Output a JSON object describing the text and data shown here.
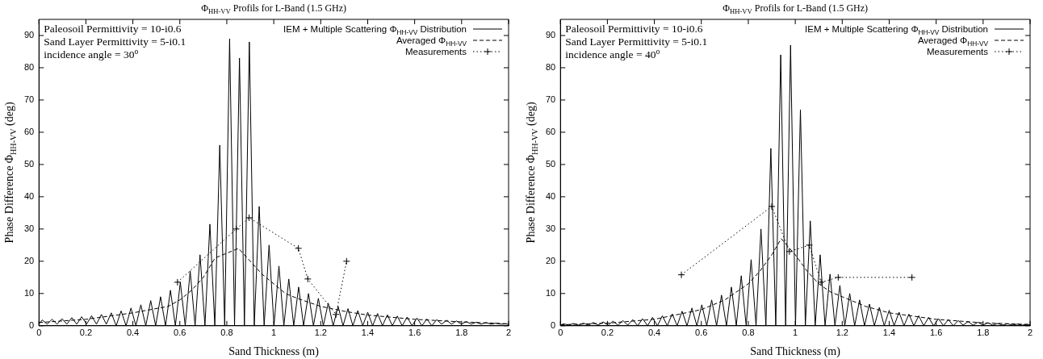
{
  "chart_data": [
    {
      "type": "line",
      "title": "Φ$_{HH-VV}$ Profils for L-Band (1.5 GHz)",
      "xlabel": "Sand Thickness (m)",
      "ylabel": "Phase Difference Φ$_{HH-VV}$ (deg)",
      "annotations": [
        "Paleosoil Permittivity = 10-i0.6",
        "Sand Layer Permittivity = 5-i0.1",
        "incidence angle = 30$^{o}$"
      ],
      "xlim": [
        0,
        2
      ],
      "xticks": [
        0,
        0.2,
        0.4,
        0.6,
        0.8,
        1,
        1.2,
        1.4,
        1.6,
        1.8,
        2
      ],
      "ylim": [
        0,
        95
      ],
      "yticks": [
        0,
        10,
        20,
        30,
        40,
        50,
        60,
        70,
        80,
        90
      ],
      "grid": false,
      "legend": "top right",
      "series": [
        {
          "name": "IEM + Multiple Scattering Φ$_{HH-VV}$ Distribution",
          "color": "#000000",
          "line_style": "solid",
          "marker": "none",
          "x": [
            0,
            0.014,
            0.035,
            0.056,
            0.077,
            0.098,
            0.119,
            0.14,
            0.161,
            0.182,
            0.203,
            0.224,
            0.245,
            0.266,
            0.287,
            0.308,
            0.329,
            0.35,
            0.371,
            0.392,
            0.413,
            0.434,
            0.455,
            0.476,
            0.497,
            0.518,
            0.539,
            0.56,
            0.581,
            0.602,
            0.623,
            0.644,
            0.665,
            0.686,
            0.707,
            0.728,
            0.749,
            0.77,
            0.791,
            0.812,
            0.833,
            0.854,
            0.875,
            0.896,
            0.917,
            0.938,
            0.959,
            0.98,
            1.001,
            1.022,
            1.043,
            1.064,
            1.085,
            1.106,
            1.127,
            1.148,
            1.169,
            1.19,
            1.211,
            1.232,
            1.253,
            1.274,
            1.295,
            1.316,
            1.337,
            1.358,
            1.379,
            1.4,
            1.421,
            1.442,
            1.463,
            1.484,
            1.505,
            1.526,
            1.547,
            1.568,
            1.589,
            1.61,
            1.631,
            1.652,
            1.673,
            1.694,
            1.715,
            1.736,
            1.757,
            1.778,
            1.799,
            1.82,
            1.841,
            1.862,
            1.883,
            1.904,
            1.925,
            1.946,
            1.967,
            1.988,
            2
          ],
          "values": [
            0.5,
            1.8,
            0.5,
            2,
            0.5,
            2.2,
            0.5,
            2.5,
            0.5,
            2.8,
            0.5,
            3.1,
            0.5,
            3.5,
            0.5,
            4,
            0,
            4.6,
            0,
            5.5,
            0,
            6.5,
            0,
            7.8,
            0,
            9,
            0,
            11,
            0,
            13.5,
            0,
            17,
            0,
            22,
            0,
            31.5,
            0,
            56,
            0,
            89,
            0,
            83,
            0,
            88,
            0,
            37,
            0,
            25,
            0,
            18.5,
            0,
            14.5,
            0,
            12,
            0,
            10,
            0,
            8.5,
            0,
            7,
            0,
            6,
            0,
            5.3,
            0,
            4.7,
            0,
            4.2,
            0,
            3.8,
            0,
            3.4,
            0,
            3,
            0,
            2.7,
            0,
            2.4,
            0,
            2.1,
            0,
            1.9,
            0.5,
            1.7,
            0.5,
            1.5,
            0.5,
            1.3,
            0.5,
            1.1,
            0.5,
            1,
            0.5,
            0.8,
            0.5,
            0.6,
            0.4
          ]
        },
        {
          "name": "Averaged Φ$_{HH-VV}$",
          "color": "#000000",
          "line_style": "dashed",
          "marker": "none",
          "x": [
            0,
            0.2,
            0.4,
            0.55,
            0.6,
            0.65,
            0.7,
            0.75,
            0.8,
            0.85,
            0.9,
            0.95,
            1,
            1.05,
            1.1,
            1.2,
            1.3,
            1.4,
            1.6,
            1.8,
            2
          ],
          "values": [
            1,
            2,
            4,
            6,
            8,
            11,
            15,
            21,
            22.5,
            24,
            20,
            16,
            13,
            10,
            8.5,
            6,
            4.5,
            3.3,
            2,
            1.2,
            0.6
          ]
        },
        {
          "name": "Measurements",
          "color": "#000000",
          "line_style": "dotted",
          "marker": "cross",
          "x": [
            0.59,
            0.84,
            0.895,
            1.105,
            1.145,
            1.265,
            1.31
          ],
          "values": [
            13.5,
            30,
            33.5,
            24,
            14.5,
            3.5,
            20
          ]
        }
      ]
    },
    {
      "type": "line",
      "title": "Φ$_{HH-VV}$ Profils for L-Band (1.5 GHz)",
      "xlabel": "Sand Thickness (m)",
      "ylabel": "Phase Difference Φ$_{HH-VV}$ (deg)",
      "annotations": [
        "Paleosoil Permittivity = 10-i0.6",
        "Sand Layer Permittivity = 5-i0.1",
        "incidence angle = 40$^{o}$"
      ],
      "xlim": [
        0,
        2
      ],
      "xticks": [
        0,
        0.2,
        0.4,
        0.6,
        0.8,
        1,
        1.2,
        1.4,
        1.6,
        1.8,
        2
      ],
      "ylim": [
        0,
        95
      ],
      "yticks": [
        0,
        10,
        20,
        30,
        40,
        50,
        60,
        70,
        80,
        90
      ],
      "grid": false,
      "legend": "top right",
      "series": [
        {
          "name": "IEM + Multiple Scattering Φ$_{HH-VV}$ Distribution",
          "color": "#000000",
          "line_style": "solid",
          "marker": "none",
          "x": [
            0,
            0.014,
            0.035,
            0.056,
            0.077,
            0.098,
            0.119,
            0.14,
            0.161,
            0.182,
            0.203,
            0.224,
            0.245,
            0.266,
            0.287,
            0.308,
            0.329,
            0.35,
            0.371,
            0.392,
            0.413,
            0.434,
            0.455,
            0.476,
            0.497,
            0.518,
            0.539,
            0.56,
            0.581,
            0.602,
            0.623,
            0.644,
            0.665,
            0.686,
            0.707,
            0.728,
            0.749,
            0.77,
            0.791,
            0.812,
            0.833,
            0.854,
            0.875,
            0.896,
            0.917,
            0.938,
            0.959,
            0.98,
            1.001,
            1.022,
            1.043,
            1.064,
            1.085,
            1.106,
            1.127,
            1.148,
            1.169,
            1.19,
            1.211,
            1.232,
            1.253,
            1.274,
            1.295,
            1.316,
            1.337,
            1.358,
            1.379,
            1.4,
            1.421,
            1.442,
            1.463,
            1.484,
            1.505,
            1.526,
            1.547,
            1.568,
            1.589,
            1.61,
            1.631,
            1.652,
            1.673,
            1.694,
            1.715,
            1.736,
            1.757,
            1.778,
            1.799,
            1.82,
            1.841,
            1.862,
            1.883,
            1.904,
            1.925,
            1.946,
            1.967,
            1.988,
            2
          ],
          "values": [
            0.2,
            0.6,
            0.2,
            0.7,
            0.2,
            0.8,
            0.2,
            1.0,
            0.2,
            1.2,
            0.2,
            1.4,
            0.2,
            1.6,
            0.2,
            1.9,
            0,
            2.2,
            0,
            2.6,
            0,
            3.1,
            0,
            3.7,
            0,
            4.5,
            0,
            5.5,
            0,
            6.5,
            0,
            8,
            0,
            9.5,
            0,
            12,
            0,
            15.5,
            0,
            20.5,
            0,
            30,
            0,
            55,
            0,
            84,
            0,
            87,
            0,
            67,
            0,
            32.5,
            0,
            22,
            0,
            16,
            0,
            12.5,
            0,
            10,
            0,
            8,
            0,
            6.7,
            0,
            5.7,
            0,
            4.8,
            0,
            4.2,
            0,
            3.6,
            0,
            3.1,
            0,
            2.6,
            0,
            2.2,
            0,
            1.9,
            0,
            1.6,
            0.2,
            1.3,
            0.2,
            1.1,
            0.2,
            0.9,
            0.2,
            0.7,
            0.2,
            0.6,
            0.2,
            0.5,
            0.2,
            0.4,
            0.3
          ]
        },
        {
          "name": "Averaged Φ$_{HH-VV}$",
          "color": "#000000",
          "line_style": "dashed",
          "marker": "none",
          "x": [
            0,
            0.2,
            0.4,
            0.6,
            0.7,
            0.8,
            0.85,
            0.9,
            0.94,
            1,
            1.05,
            1.1,
            1.15,
            1.2,
            1.3,
            1.4,
            1.6,
            1.8,
            2
          ],
          "values": [
            0.3,
            0.8,
            2,
            5,
            8,
            13,
            17,
            22,
            27,
            22,
            17,
            13,
            10.5,
            9,
            6,
            4,
            2,
            0.9,
            0.4
          ]
        },
        {
          "name": "Measurements",
          "color": "#000000",
          "line_style": "dotted",
          "marker": "cross",
          "x": [
            0.515,
            0.9,
            0.975,
            1.06,
            1.11,
            1.183,
            1.497
          ],
          "values": [
            15.8,
            37,
            23,
            25,
            13.5,
            15,
            15
          ]
        }
      ]
    }
  ]
}
